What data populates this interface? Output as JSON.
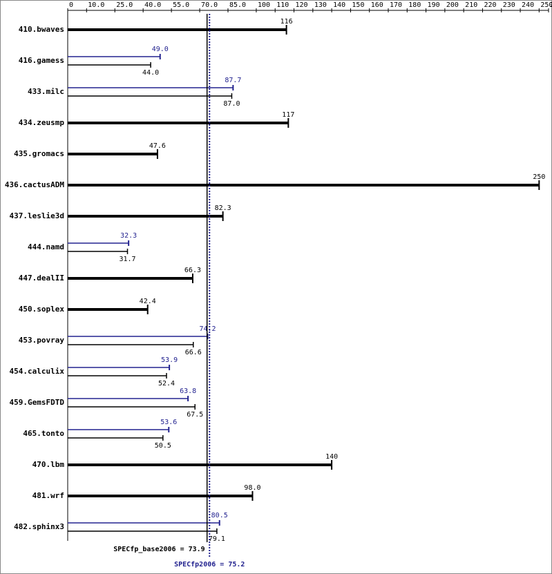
{
  "chart_data": {
    "type": "spec-bar",
    "categories": [
      "410.bwaves",
      "416.gamess",
      "433.milc",
      "434.zeusmp",
      "435.gromacs",
      "436.cactusADM",
      "437.leslie3d",
      "444.namd",
      "447.dealII",
      "450.soplex",
      "453.povray",
      "454.calculix",
      "459.GemsFDTD",
      "465.tonto",
      "470.lbm",
      "481.wrf",
      "482.sphinx3"
    ],
    "series": [
      {
        "color": "#000000",
        "values": [
          116,
          44.0,
          87.0,
          117,
          47.6,
          250,
          82.3,
          31.7,
          66.3,
          42.4,
          66.6,
          52.4,
          67.5,
          50.5,
          140,
          98.0,
          79.1
        ],
        "value_labels": [
          "116",
          "44.0",
          "87.0",
          "117",
          "47.6",
          "250",
          "82.3",
          "31.7",
          "66.3",
          "42.4",
          "66.6",
          "52.4",
          "67.5",
          "50.5",
          "140",
          "98.0",
          "79.1"
        ]
      },
      {
        "color": "#22228f",
        "values": [
          null,
          49.0,
          87.7,
          null,
          null,
          null,
          null,
          32.3,
          null,
          null,
          74.2,
          53.9,
          63.8,
          53.6,
          null,
          null,
          80.5
        ],
        "value_labels": [
          null,
          "49.0",
          "87.7",
          null,
          null,
          null,
          null,
          "32.3",
          null,
          null,
          "74.2",
          "53.9",
          "63.8",
          "53.6",
          null,
          null,
          "80.5"
        ]
      }
    ],
    "xlim": [
      0,
      255
    ],
    "xticks": [
      0,
      {
        "value": 10,
        "label": "10.0"
      },
      {
        "value": 25,
        "label": "25.0"
      },
      {
        "value": 40,
        "label": "40.0"
      },
      {
        "value": 55,
        "label": "55.0"
      },
      {
        "value": 70,
        "label": "70.0"
      },
      {
        "value": 85,
        "label": "85.0"
      },
      100,
      110,
      120,
      130,
      140,
      150,
      160,
      170,
      180,
      190,
      200,
      210,
      220,
      230,
      240,
      250,
      255
    ],
    "reference_lines": [
      {
        "label": "SPECfp_base2006 = 73.9",
        "value": 73.9,
        "color": "#000000",
        "style": "solid"
      },
      {
        "label": "SPECfp2006 = 75.2",
        "value": 75.2,
        "color": "#22228f",
        "style": "dotted"
      }
    ]
  }
}
